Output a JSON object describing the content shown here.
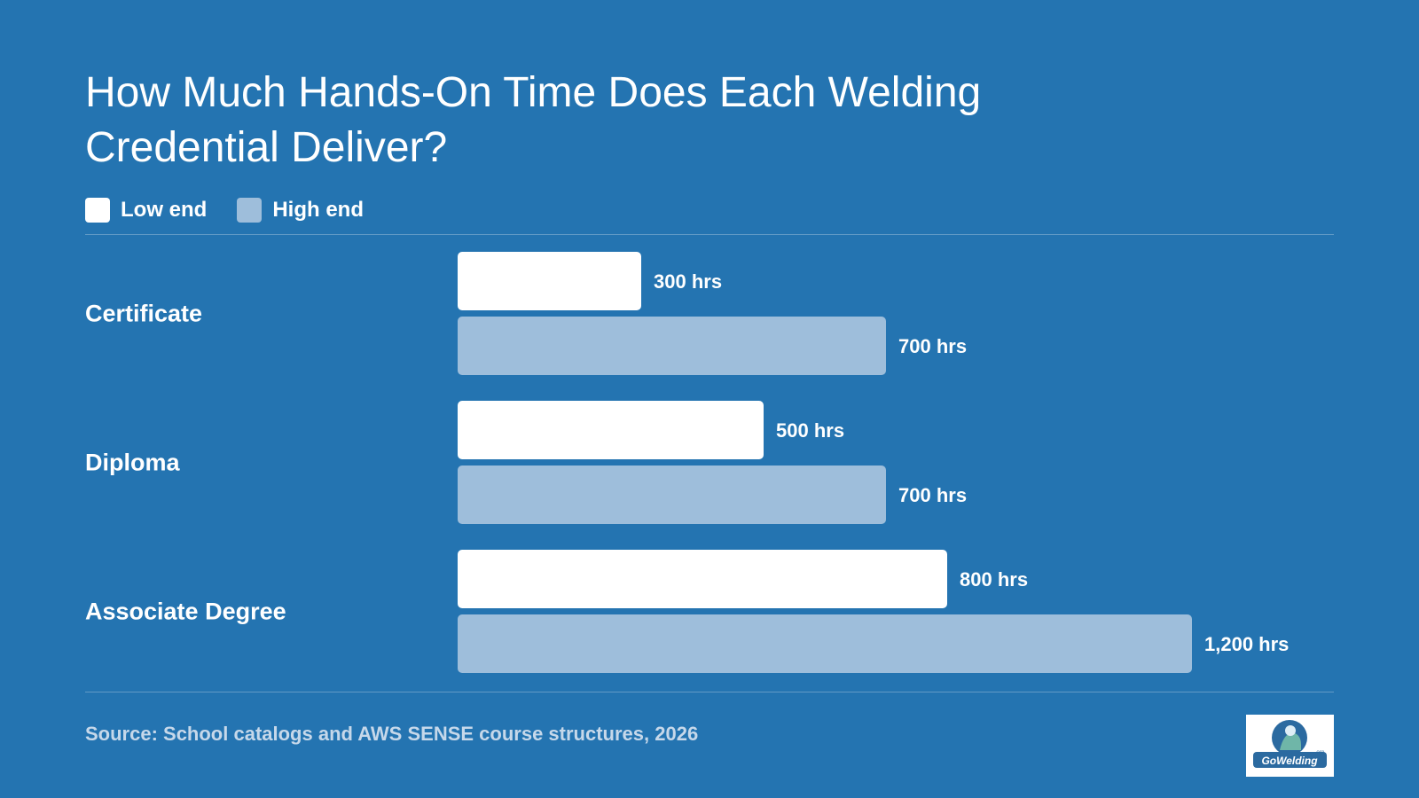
{
  "title": "How Much Hands-On Time Does Each Welding Credential Deliver?",
  "legend": [
    {
      "label": "Low end",
      "color": "#ffffff"
    },
    {
      "label": "High end",
      "color": "#9ebedb"
    }
  ],
  "source": "Source: School catalogs and AWS SENSE course structures, 2026",
  "logo": {
    "text": "GoWelding",
    "suffix": ".org"
  },
  "colors": {
    "background": "#2474b1",
    "low": "#ffffff",
    "high": "#9ebedb",
    "source_text": "#c6d8ea"
  },
  "chart_data": {
    "type": "bar",
    "orientation": "horizontal",
    "categories": [
      "Certificate",
      "Diploma",
      "Associate Degree"
    ],
    "series": [
      {
        "name": "Low end",
        "values": [
          300,
          500,
          800
        ],
        "labels": [
          "300 hrs",
          "500 hrs",
          "800 hrs"
        ]
      },
      {
        "name": "High end",
        "values": [
          700,
          700,
          1200
        ],
        "labels": [
          "700 hrs",
          "700 hrs",
          "1,200 hrs"
        ]
      }
    ],
    "xlim": [
      0,
      1200
    ],
    "grid": false,
    "legend_position": "top-left"
  }
}
